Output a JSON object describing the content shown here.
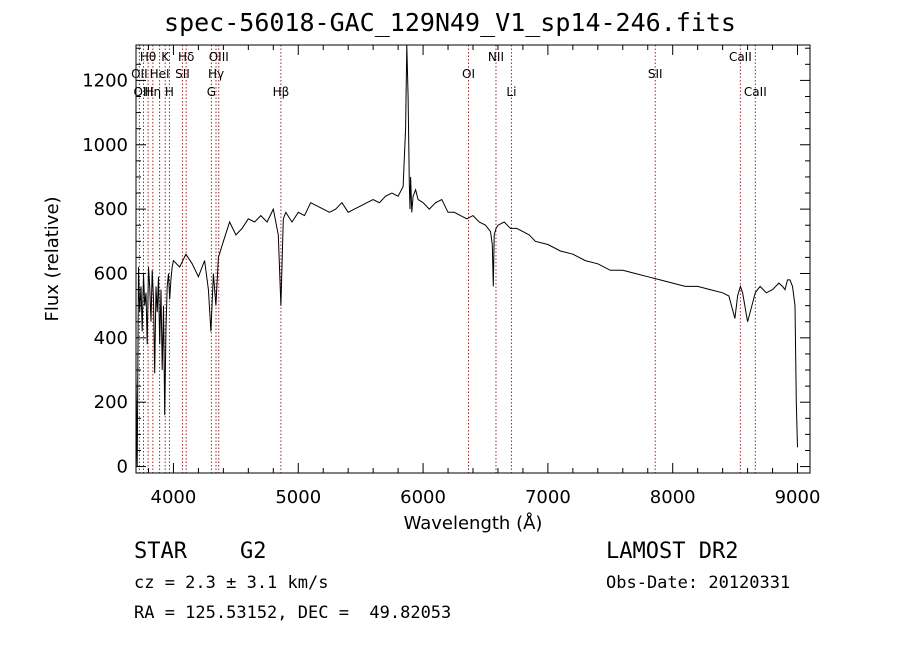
{
  "header": {
    "title": "spec-56018-GAC_129N49_V1_sp14-246.fits"
  },
  "info": {
    "object_class": "STAR",
    "subclass": "G2",
    "survey": "LAMOST DR2",
    "redshift_text": "cz = 2.3 ± 3.1 km/s",
    "obs_date_text": "Obs-Date: 20120331",
    "coords_text": "RA = 125.53152, DEC =  49.82053"
  },
  "chart_data": {
    "type": "line",
    "title": "spec-56018-GAC_129N49_V1_sp14-246.fits",
    "xlabel": "Wavelength (Å)",
    "ylabel": "Flux (relative)",
    "xlim": [
      3700,
      9100
    ],
    "ylim": [
      -20,
      1310
    ],
    "xticks": [
      4000,
      5000,
      6000,
      7000,
      8000,
      9000
    ],
    "yticks": [
      0,
      200,
      400,
      600,
      800,
      1000,
      1200
    ],
    "grid": false,
    "series": [
      {
        "x": [
          3700,
          3710,
          3720,
          3730,
          3740,
          3750,
          3760,
          3770,
          3780,
          3790,
          3800,
          3810,
          3820,
          3830,
          3840,
          3850,
          3860,
          3870,
          3880,
          3890,
          3900,
          3910,
          3920,
          3930,
          3940,
          3950,
          3960,
          3970,
          3980,
          3990,
          4000,
          4050,
          4100,
          4150,
          4200,
          4250,
          4280,
          4300,
          4320,
          4340,
          4360,
          4400,
          4450,
          4500,
          4550,
          4600,
          4650,
          4700,
          4750,
          4800,
          4840,
          4861,
          4880,
          4900,
          4950,
          5000,
          5050,
          5100,
          5150,
          5200,
          5250,
          5300,
          5350,
          5400,
          5450,
          5500,
          5550,
          5600,
          5650,
          5700,
          5750,
          5800,
          5840,
          5860,
          5870,
          5880,
          5890,
          5895,
          5900,
          5910,
          5920,
          5940,
          5960,
          6000,
          6050,
          6100,
          6150,
          6200,
          6250,
          6300,
          6350,
          6400,
          6450,
          6500,
          6540,
          6555,
          6563,
          6570,
          6585,
          6600,
          6650,
          6700,
          6750,
          6800,
          6850,
          6900,
          7000,
          7100,
          7200,
          7300,
          7400,
          7500,
          7600,
          7700,
          7800,
          7900,
          8000,
          8100,
          8200,
          8300,
          8400,
          8450,
          8498,
          8520,
          8542,
          8560,
          8600,
          8662,
          8680,
          8700,
          8750,
          8800,
          8850,
          8880,
          8900,
          8920,
          8940,
          8960,
          8980,
          8990,
          9000
        ],
        "y": [
          280,
          0,
          620,
          480,
          560,
          420,
          600,
          500,
          540,
          380,
          620,
          560,
          450,
          610,
          520,
          290,
          560,
          480,
          590,
          380,
          550,
          300,
          500,
          160,
          430,
          560,
          600,
          520,
          580,
          620,
          640,
          620,
          660,
          630,
          590,
          640,
          550,
          420,
          600,
          500,
          650,
          700,
          760,
          720,
          740,
          770,
          760,
          780,
          760,
          800,
          720,
          500,
          770,
          790,
          760,
          790,
          780,
          820,
          810,
          800,
          790,
          800,
          820,
          790,
          800,
          810,
          820,
          830,
          820,
          840,
          850,
          840,
          870,
          1050,
          1310,
          1150,
          880,
          800,
          900,
          790,
          840,
          860,
          830,
          820,
          800,
          820,
          830,
          790,
          790,
          780,
          770,
          780,
          760,
          750,
          730,
          690,
          560,
          720,
          740,
          750,
          760,
          740,
          740,
          730,
          720,
          700,
          690,
          670,
          660,
          640,
          630,
          610,
          610,
          600,
          590,
          580,
          570,
          560,
          560,
          550,
          540,
          530,
          460,
          530,
          560,
          540,
          450,
          540,
          550,
          560,
          540,
          550,
          570,
          560,
          550,
          580,
          580,
          560,
          500,
          200,
          60
        ]
      }
    ],
    "lines_top": [
      {
        "label": "Hθ",
        "wl": 3797
      },
      {
        "label": "K",
        "wl": 3934
      },
      {
        "label": "Hδ",
        "wl": 4102
      },
      {
        "label": "OIII",
        "wl": 4363
      },
      {
        "label": "NII",
        "wl": 6584
      },
      {
        "label": "CaII",
        "wl": 8542
      }
    ],
    "lines_middle": [
      {
        "label": "OII",
        "wl": 3727
      },
      {
        "label": "HeI",
        "wl": 3889
      },
      {
        "label": "SII",
        "wl": 4072
      },
      {
        "label": "Hγ",
        "wl": 4341
      },
      {
        "label": "OI",
        "wl": 6364
      },
      {
        "label": "SII",
        "wl": 7860
      }
    ],
    "lines_bottom": [
      {
        "label": "OIII",
        "wl": 3760
      },
      {
        "label": "Hη",
        "wl": 3835
      },
      {
        "label": "H",
        "wl": 3968
      },
      {
        "label": "G",
        "wl": 4304
      },
      {
        "label": "Hβ",
        "wl": 4861
      },
      {
        "label": "Li",
        "wl": 6708
      },
      {
        "label": "CaII",
        "wl": 8662
      }
    ]
  }
}
